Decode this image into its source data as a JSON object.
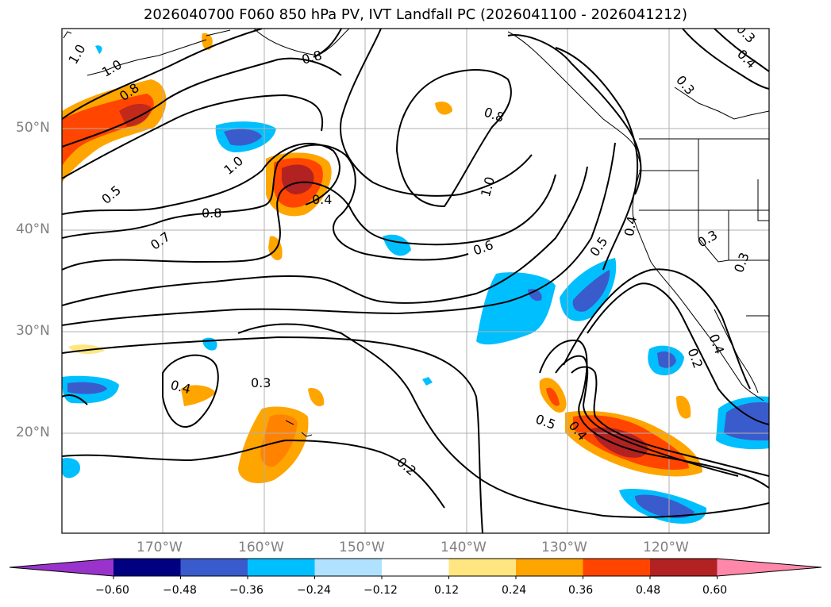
{
  "title": "2026040700 F060 850 hPa PV, IVT Landfall PC (2026041100 - 2026041212)",
  "lat_labels": [
    "50°N",
    "40°N",
    "30°N",
    "20°N"
  ],
  "lon_labels": [
    "170°W",
    "160°W",
    "150°W",
    "140°W",
    "130°W",
    "120°W"
  ],
  "contour_labels": [
    "1.0",
    "1.0",
    "0.8",
    "0.8",
    "0.5",
    "1.0",
    "0.4",
    "0.8",
    "0.7",
    "0.8",
    "1.0",
    "0.6",
    "0.5",
    "0.4",
    "0.3",
    "0.3",
    "0.4",
    "0.3",
    "0.3",
    "0.4",
    "0.2",
    "0.4",
    "0.3",
    "0.5",
    "0.4",
    "0.2"
  ],
  "colorbar": {
    "ticks": [
      "−0.60",
      "−0.48",
      "−0.36",
      "−0.24",
      "−0.12",
      "0.12",
      "0.24",
      "0.36",
      "0.48",
      "0.60"
    ],
    "colors": [
      "#9933cc",
      "#000080",
      "#3a5bcc",
      "#00bfff",
      "#b0e2ff",
      "#ffffff",
      "#ffe680",
      "#ffa500",
      "#ff4500",
      "#b22222",
      "#ff88aa"
    ]
  },
  "colors": {
    "text_axis": "#808080",
    "contour": "#000000"
  }
}
